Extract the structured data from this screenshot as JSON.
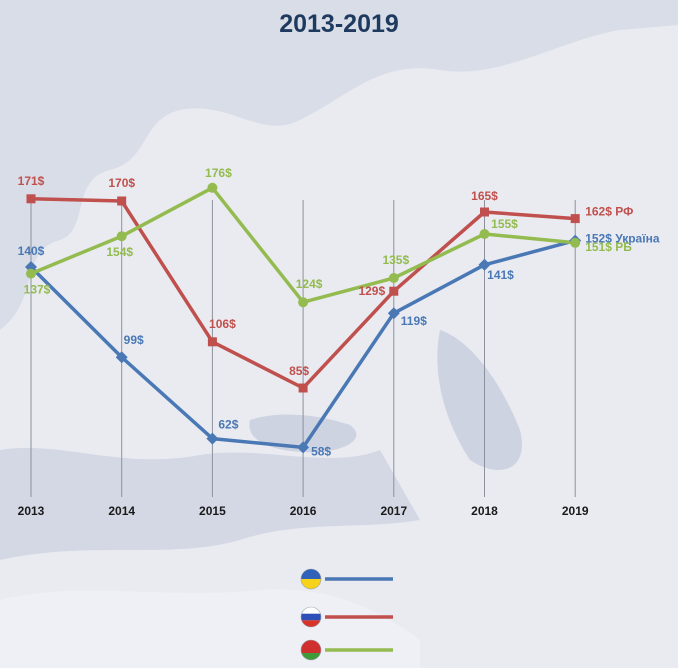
{
  "chart_data": {
    "type": "line",
    "title": "2013-2019",
    "x": [
      "2013",
      "2014",
      "2015",
      "2016",
      "2017",
      "2018",
      "2019"
    ],
    "xlabel": "",
    "ylabel": "",
    "ylim": [
      40,
      190
    ],
    "grid": "vertical",
    "legend_position": "bottom-center",
    "series": [
      {
        "key": "ua",
        "color": "#4a78b5",
        "marker": "diamond",
        "values": [
          140,
          99,
          62,
          58,
          119,
          141,
          152
        ],
        "labels": [
          "140$",
          "99$",
          "62$",
          "58$",
          "119$",
          "141$",
          "152$"
        ],
        "end_label": "Україна",
        "flag": "ukraine-flag-icon"
      },
      {
        "key": "ru",
        "color": "#c0504d",
        "marker": "square",
        "values": [
          171,
          170,
          106,
          85,
          129,
          165,
          162
        ],
        "labels": [
          "171$",
          "170$",
          "106$",
          "85$",
          "129$",
          "165$",
          "162$"
        ],
        "end_label": "РФ",
        "flag": "russia-flag-icon"
      },
      {
        "key": "by",
        "color": "#93bb4f",
        "marker": "circle",
        "values": [
          137,
          154,
          176,
          124,
          135,
          155,
          151
        ],
        "labels": [
          "137$",
          "154$",
          "176$",
          "124$",
          "135$",
          "155$",
          "151$"
        ],
        "end_label": "РБ",
        "flag": "belarus-flag-icon"
      }
    ]
  }
}
